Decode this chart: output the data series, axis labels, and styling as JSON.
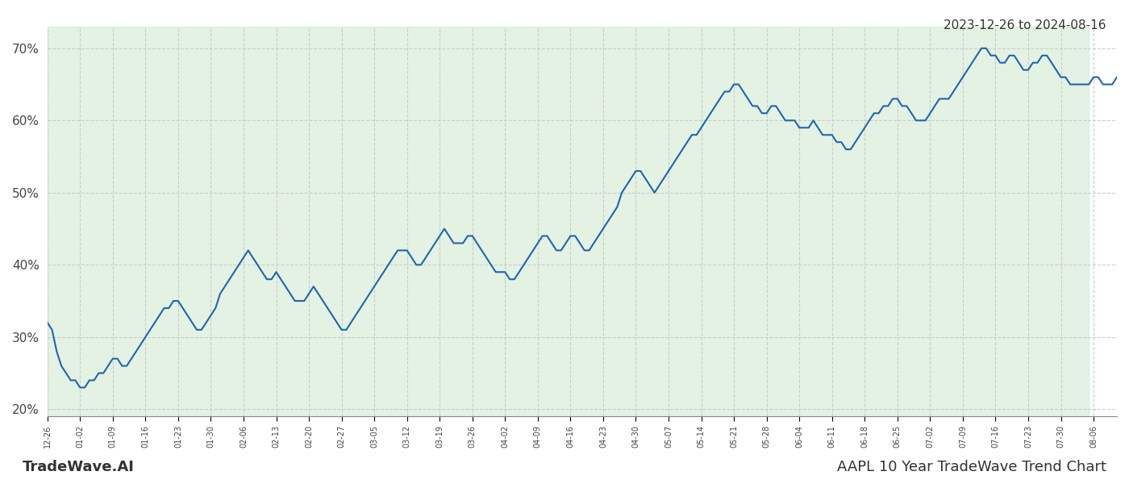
{
  "title_top_right": "2023-12-26 to 2024-08-16",
  "title_bottom_left": "TradeWave.AI",
  "title_bottom_right": "AAPL 10 Year TradeWave Trend Chart",
  "line_color": "#2166ac",
  "shade_color": "#c8e6c9",
  "shade_alpha": 0.5,
  "background_color": "#ffffff",
  "grid_color": "#cccccc",
  "ylim": [
    19,
    73
  ],
  "yticks": [
    20,
    30,
    40,
    50,
    60,
    70
  ],
  "ytick_labels": [
    "20%",
    "30%",
    "40%",
    "50%",
    "60%",
    "70%"
  ],
  "shade_start": "2023-12-26",
  "shade_end": "2024-08-05",
  "line_width": 1.5,
  "values": [
    32,
    31,
    28,
    26,
    25,
    24,
    24,
    23,
    23,
    24,
    24,
    25,
    25,
    26,
    27,
    27,
    26,
    26,
    27,
    28,
    29,
    30,
    31,
    32,
    33,
    34,
    34,
    35,
    35,
    34,
    33,
    32,
    31,
    31,
    32,
    33,
    34,
    36,
    37,
    38,
    39,
    40,
    41,
    42,
    41,
    40,
    39,
    38,
    38,
    39,
    38,
    37,
    36,
    35,
    35,
    35,
    36,
    37,
    36,
    35,
    34,
    33,
    32,
    31,
    31,
    32,
    33,
    34,
    35,
    36,
    37,
    38,
    39,
    40,
    41,
    42,
    42,
    42,
    41,
    40,
    40,
    41,
    42,
    43,
    44,
    45,
    44,
    43,
    43,
    43,
    44,
    44,
    43,
    42,
    41,
    40,
    39,
    39,
    39,
    38,
    38,
    39,
    40,
    41,
    42,
    43,
    44,
    44,
    43,
    42,
    42,
    43,
    44,
    44,
    43,
    42,
    42,
    43,
    44,
    45,
    46,
    47,
    48,
    50,
    51,
    52,
    53,
    53,
    52,
    51,
    50,
    51,
    52,
    53,
    54,
    55,
    56,
    57,
    58,
    58,
    59,
    60,
    61,
    62,
    63,
    64,
    64,
    65,
    65,
    64,
    63,
    62,
    62,
    61,
    61,
    62,
    62,
    61,
    60,
    60,
    60,
    59,
    59,
    59,
    60,
    59,
    58,
    58,
    58,
    57,
    57,
    56,
    56,
    57,
    58,
    59,
    60,
    61,
    61,
    62,
    62,
    63,
    63,
    62,
    62,
    61,
    60,
    60,
    60,
    61,
    62,
    63,
    63,
    63,
    64,
    65,
    66,
    67,
    68,
    69,
    70,
    70,
    69,
    69,
    68,
    68,
    69,
    69,
    68,
    67,
    67,
    68,
    68,
    69,
    69,
    68,
    67,
    66,
    66,
    65,
    65,
    65,
    65,
    65,
    66,
    66,
    65,
    65,
    65,
    66
  ],
  "start_date": "2023-12-26"
}
